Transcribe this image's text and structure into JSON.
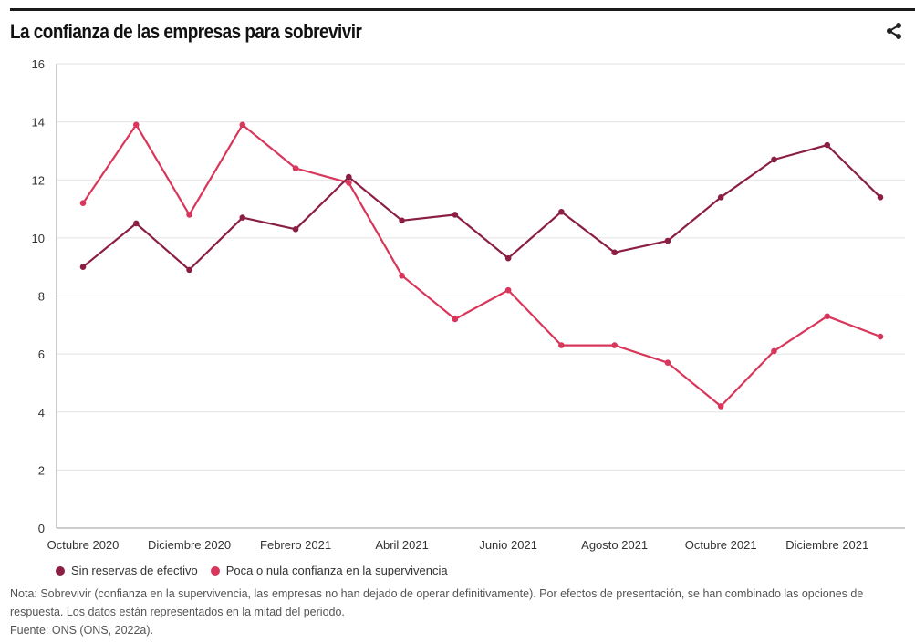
{
  "header": {
    "title": "La confianza de las empresas para sobrevivir",
    "share_icon": "share-icon"
  },
  "chart_data": {
    "type": "line",
    "title": "La confianza de las empresas para sobrevivir",
    "xlabel": "",
    "ylabel": "",
    "ylim": [
      0,
      16
    ],
    "yticks": [
      0,
      2,
      4,
      6,
      8,
      10,
      12,
      14,
      16
    ],
    "grid": true,
    "legend_position": "bottom-left",
    "x": [
      "Octubre 2020",
      "Noviembre 2020",
      "Diciembre 2020",
      "Enero 2021",
      "Febrero 2021",
      "Marzo 2021",
      "Abril 2021",
      "Mayo 2021",
      "Junio 2021",
      "Julio 2021",
      "Agosto 2021",
      "Septiembre 2021",
      "Octubre 2021",
      "Noviembre 2021",
      "Diciembre 2021",
      "Enero 2022"
    ],
    "xtick_labels": [
      "Octubre 2020",
      "Diciembre 2020",
      "Febrero 2021",
      "Abril 2021",
      "Junio 2021",
      "Agosto 2021",
      "Octubre 2021",
      "Diciembre 2021"
    ],
    "series": [
      {
        "name": "Sin reservas de efectivo",
        "color": "#8B1E45",
        "values": [
          9.0,
          10.5,
          8.9,
          10.7,
          10.3,
          12.1,
          10.6,
          10.8,
          9.3,
          10.9,
          9.5,
          9.9,
          11.4,
          12.7,
          13.2,
          11.4
        ]
      },
      {
        "name": "Poca o nula confianza en la supervivencia",
        "color": "#D8365A",
        "values": [
          11.2,
          13.9,
          10.8,
          13.9,
          12.4,
          11.9,
          8.7,
          7.2,
          8.2,
          6.3,
          6.3,
          5.7,
          4.2,
          6.1,
          7.3,
          6.6
        ]
      }
    ]
  },
  "legend": [
    {
      "label": "Sin reservas de efectivo",
      "color": "#8B1E45"
    },
    {
      "label": "Poca o nula confianza en la supervivencia",
      "color": "#D8365A"
    }
  ],
  "footer": {
    "note_line1": "Nota: Sobrevivir (confianza en la supervivencia, las empresas no han dejado de operar definitivamente). Por efectos de presentación, se han combinado las opciones de",
    "note_line2": "respuesta. Los datos están representados en la mitad del periodo.",
    "source": "Fuente: ONS (ONS, 2022a)."
  }
}
